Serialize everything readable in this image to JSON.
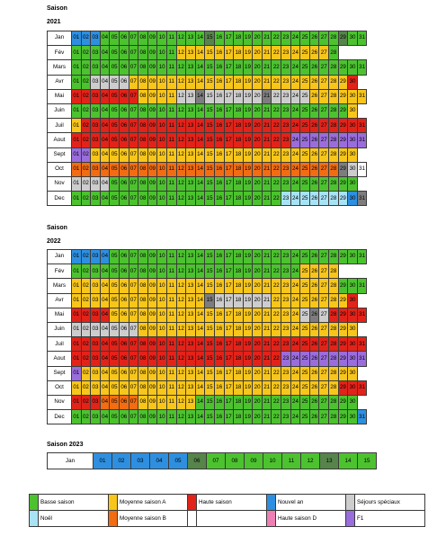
{
  "colors": {
    "B": "#4cc22f",
    "A": "#f8c61a",
    "H": "#e2231a",
    "N": "#2e8fe0",
    "S": "#cdcdcd",
    "E": "#a7e3f4",
    "M": "#f26c12",
    "D": "#ee7fb5",
    "F": "#9a6ddc",
    "G": "#56844a",
    "Y": "#7d7d7d",
    "W": "#ffffff"
  },
  "section_2021": {
    "title": "Saison",
    "year": "2021",
    "months": [
      {
        "name": "Jan",
        "days": [
          "N",
          "N",
          "N",
          "B",
          "B",
          "B",
          "B",
          "B",
          "B",
          "B",
          "B",
          "B",
          "B",
          "B",
          "G",
          "B",
          "B",
          "B",
          "B",
          "B",
          "B",
          "B",
          "B",
          "B",
          "B",
          "B",
          "B",
          "B",
          "G",
          "B",
          "B"
        ]
      },
      {
        "name": "Fév",
        "days": [
          "B",
          "B",
          "B",
          "B",
          "B",
          "B",
          "B",
          "B",
          "B",
          "B",
          "B",
          "A",
          "A",
          "A",
          "A",
          "A",
          "A",
          "A",
          "A",
          "A",
          "A",
          "A",
          "A",
          "A",
          "A",
          "A",
          "A",
          "B"
        ]
      },
      {
        "name": "Mars",
        "days": [
          "B",
          "B",
          "B",
          "B",
          "B",
          "B",
          "B",
          "B",
          "B",
          "B",
          "B",
          "B",
          "B",
          "B",
          "B",
          "B",
          "B",
          "B",
          "B",
          "B",
          "B",
          "B",
          "B",
          "B",
          "B",
          "B",
          "B",
          "B",
          "B",
          "B",
          "B"
        ]
      },
      {
        "name": "Avr",
        "days": [
          "B",
          "B",
          "S",
          "S",
          "S",
          "S",
          "A",
          "A",
          "A",
          "A",
          "A",
          "A",
          "A",
          "A",
          "A",
          "A",
          "A",
          "A",
          "A",
          "A",
          "A",
          "A",
          "A",
          "A",
          "A",
          "A",
          "A",
          "A",
          "A",
          "H"
        ]
      },
      {
        "name": "Mai",
        "days": [
          "H",
          "H",
          "H",
          "H",
          "H",
          "H",
          "H",
          "A",
          "A",
          "A",
          "A",
          "S",
          "S",
          "Y",
          "S",
          "S",
          "S",
          "S",
          "S",
          "S",
          "Y",
          "S",
          "S",
          "S",
          "S",
          "A",
          "A",
          "A",
          "A",
          "A",
          "A"
        ]
      },
      {
        "name": "Juin",
        "days": [
          "B",
          "B",
          "B",
          "B",
          "B",
          "B",
          "B",
          "B",
          "B",
          "B",
          "B",
          "B",
          "B",
          "B",
          "B",
          "B",
          "B",
          "B",
          "B",
          "B",
          "B",
          "B",
          "B",
          "B",
          "B",
          "B",
          "B",
          "B",
          "B",
          "A"
        ]
      },
      {
        "name": "Juil",
        "days": [
          "A",
          "H",
          "H",
          "H",
          "H",
          "H",
          "H",
          "H",
          "H",
          "H",
          "H",
          "H",
          "H",
          "H",
          "H",
          "H",
          "H",
          "H",
          "H",
          "H",
          "H",
          "H",
          "H",
          "H",
          "H",
          "H",
          "H",
          "H",
          "H",
          "H",
          "H"
        ]
      },
      {
        "name": "Aout",
        "days": [
          "H",
          "H",
          "H",
          "H",
          "H",
          "H",
          "H",
          "H",
          "H",
          "H",
          "H",
          "H",
          "H",
          "H",
          "H",
          "H",
          "H",
          "H",
          "H",
          "H",
          "H",
          "H",
          "H",
          "F",
          "F",
          "F",
          "F",
          "F",
          "F",
          "F",
          "F"
        ]
      },
      {
        "name": "Sept",
        "days": [
          "F",
          "F",
          "A",
          "A",
          "A",
          "A",
          "A",
          "A",
          "A",
          "A",
          "A",
          "A",
          "A",
          "A",
          "A",
          "A",
          "A",
          "A",
          "A",
          "A",
          "A",
          "A",
          "A",
          "A",
          "A",
          "A",
          "A",
          "A",
          "A",
          "A"
        ]
      },
      {
        "name": "Oct",
        "days": [
          "M",
          "M",
          "M",
          "M",
          "M",
          "M",
          "M",
          "M",
          "M",
          "M",
          "M",
          "M",
          "M",
          "M",
          "M",
          "M",
          "M",
          "M",
          "M",
          "M",
          "M",
          "M",
          "M",
          "M",
          "M",
          "M",
          "M",
          "M",
          "Y",
          "S",
          "W"
        ]
      },
      {
        "name": "Nov",
        "days": [
          "S",
          "S",
          "S",
          "S",
          "B",
          "B",
          "B",
          "B",
          "B",
          "B",
          "B",
          "B",
          "B",
          "B",
          "B",
          "B",
          "B",
          "B",
          "B",
          "B",
          "B",
          "B",
          "B",
          "B",
          "B",
          "B",
          "B",
          "B",
          "B",
          "B"
        ]
      },
      {
        "name": "Dec",
        "days": [
          "B",
          "B",
          "B",
          "B",
          "B",
          "B",
          "B",
          "B",
          "B",
          "B",
          "B",
          "B",
          "B",
          "B",
          "B",
          "B",
          "B",
          "B",
          "B",
          "B",
          "B",
          "B",
          "E",
          "E",
          "E",
          "E",
          "E",
          "E",
          "E",
          "N",
          "Y"
        ]
      }
    ]
  },
  "section_2022": {
    "title": "Saison",
    "year": "2022",
    "months": [
      {
        "name": "Jan",
        "days": [
          "N",
          "N",
          "N",
          "N",
          "B",
          "B",
          "B",
          "B",
          "B",
          "B",
          "B",
          "B",
          "B",
          "B",
          "B",
          "B",
          "B",
          "B",
          "B",
          "B",
          "B",
          "B",
          "B",
          "B",
          "B",
          "B",
          "B",
          "B",
          "B",
          "B",
          "B"
        ]
      },
      {
        "name": "Fév",
        "days": [
          "B",
          "B",
          "B",
          "B",
          "B",
          "B",
          "B",
          "B",
          "B",
          "B",
          "B",
          "B",
          "B",
          "B",
          "B",
          "B",
          "B",
          "B",
          "B",
          "B",
          "B",
          "B",
          "B",
          "B",
          "A",
          "A",
          "A",
          "A"
        ]
      },
      {
        "name": "Mars",
        "days": [
          "A",
          "A",
          "A",
          "A",
          "A",
          "A",
          "A",
          "A",
          "A",
          "A",
          "A",
          "A",
          "A",
          "A",
          "A",
          "A",
          "A",
          "A",
          "A",
          "A",
          "A",
          "A",
          "A",
          "A",
          "A",
          "A",
          "A",
          "A",
          "B",
          "B",
          "B"
        ]
      },
      {
        "name": "Avr",
        "days": [
          "A",
          "A",
          "A",
          "A",
          "A",
          "A",
          "A",
          "A",
          "A",
          "A",
          "A",
          "A",
          "A",
          "A",
          "Y",
          "S",
          "S",
          "S",
          "S",
          "S",
          "S",
          "A",
          "A",
          "A",
          "A",
          "A",
          "A",
          "A",
          "A",
          "H"
        ]
      },
      {
        "name": "Mai",
        "days": [
          "H",
          "H",
          "H",
          "H",
          "A",
          "A",
          "A",
          "A",
          "A",
          "A",
          "A",
          "A",
          "A",
          "A",
          "A",
          "A",
          "A",
          "A",
          "A",
          "A",
          "A",
          "A",
          "A",
          "A",
          "S",
          "Y",
          "S",
          "H",
          "H",
          "H",
          "H"
        ]
      },
      {
        "name": "Juin",
        "days": [
          "S",
          "S",
          "S",
          "S",
          "S",
          "S",
          "S",
          "A",
          "A",
          "A",
          "A",
          "A",
          "A",
          "A",
          "A",
          "A",
          "A",
          "A",
          "A",
          "A",
          "A",
          "A",
          "A",
          "A",
          "A",
          "A",
          "A",
          "A",
          "A",
          "A"
        ]
      },
      {
        "name": "Juil",
        "days": [
          "H",
          "H",
          "H",
          "H",
          "H",
          "H",
          "H",
          "H",
          "H",
          "H",
          "H",
          "H",
          "H",
          "H",
          "H",
          "H",
          "H",
          "H",
          "H",
          "H",
          "H",
          "H",
          "H",
          "H",
          "H",
          "H",
          "H",
          "H",
          "H",
          "H",
          "H"
        ]
      },
      {
        "name": "Aout",
        "days": [
          "H",
          "H",
          "H",
          "H",
          "H",
          "H",
          "H",
          "H",
          "H",
          "H",
          "H",
          "H",
          "H",
          "H",
          "H",
          "H",
          "H",
          "H",
          "H",
          "H",
          "H",
          "H",
          "F",
          "F",
          "F",
          "F",
          "F",
          "F",
          "F",
          "F",
          "F"
        ]
      },
      {
        "name": "Sept",
        "days": [
          "F",
          "A",
          "A",
          "A",
          "A",
          "A",
          "A",
          "A",
          "A",
          "A",
          "A",
          "A",
          "A",
          "A",
          "A",
          "A",
          "A",
          "A",
          "A",
          "A",
          "A",
          "A",
          "A",
          "A",
          "A",
          "A",
          "A",
          "A",
          "A",
          "A"
        ]
      },
      {
        "name": "Oct",
        "days": [
          "A",
          "A",
          "A",
          "A",
          "A",
          "A",
          "A",
          "A",
          "A",
          "A",
          "A",
          "A",
          "A",
          "A",
          "A",
          "A",
          "A",
          "A",
          "A",
          "A",
          "A",
          "A",
          "A",
          "A",
          "A",
          "A",
          "A",
          "A",
          "H",
          "H",
          "H"
        ]
      },
      {
        "name": "Nov",
        "days": [
          "H",
          "H",
          "H",
          "M",
          "M",
          "M",
          "M",
          "A",
          "A",
          "A",
          "A",
          "A",
          "A",
          "B",
          "B",
          "B",
          "B",
          "B",
          "B",
          "B",
          "B",
          "B",
          "B",
          "B",
          "B",
          "B",
          "B",
          "B",
          "B",
          "B"
        ]
      },
      {
        "name": "Dec",
        "days": [
          "B",
          "B",
          "B",
          "B",
          "B",
          "B",
          "B",
          "B",
          "B",
          "B",
          "B",
          "B",
          "B",
          "B",
          "B",
          "B",
          "B",
          "B",
          "B",
          "B",
          "B",
          "B",
          "B",
          "B",
          "B",
          "B",
          "B",
          "B",
          "B",
          "B",
          "N"
        ]
      }
    ]
  },
  "section_2023": {
    "title": "Saison 2023",
    "month": "Jan",
    "days": [
      "N",
      "N",
      "N",
      "N",
      "N",
      "G",
      "B",
      "B",
      "B",
      "B",
      "B",
      "B",
      "G",
      "B",
      "B"
    ]
  },
  "legend": {
    "rows": [
      [
        {
          "code": "B",
          "label": "Basse saison"
        },
        {
          "code": "A",
          "label": "Moyenne saison A"
        },
        {
          "code": "H",
          "label": "Haute saison"
        },
        {
          "code": "N",
          "label": "Nouvel an"
        },
        {
          "code": "S",
          "label": "Séjours spéciaux"
        }
      ],
      [
        {
          "code": "E",
          "label": "Noël"
        },
        {
          "code": "M",
          "label": "Moyenne saison B"
        },
        {
          "code": "W",
          "label": ""
        },
        {
          "code": "D",
          "label": "Haute saison D"
        },
        {
          "code": "F",
          "label": "F1"
        }
      ]
    ]
  }
}
